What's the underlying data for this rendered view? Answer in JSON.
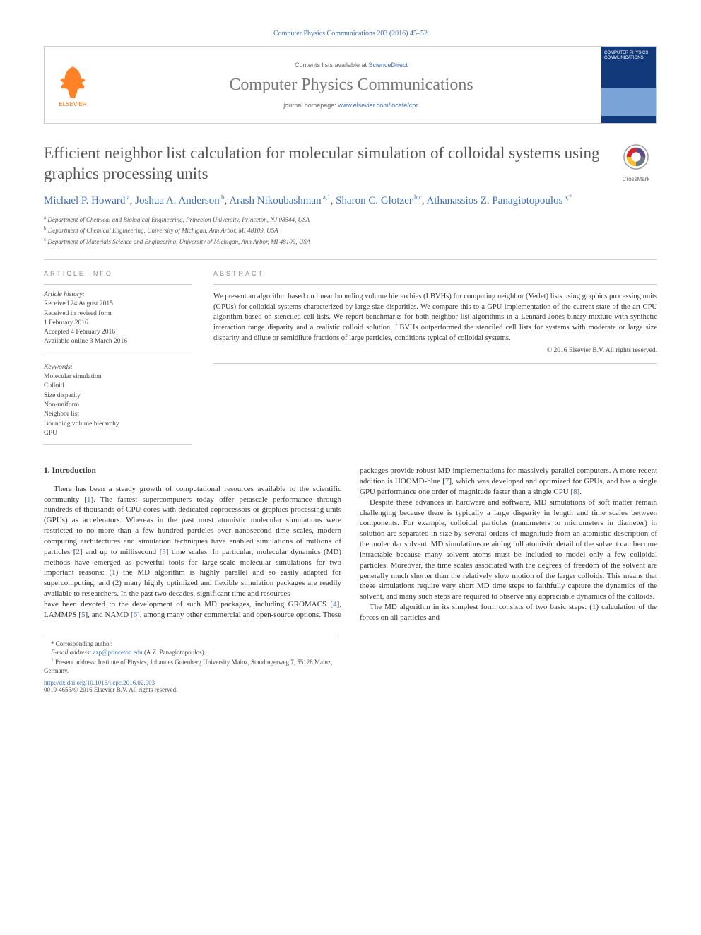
{
  "citation": "Computer Physics Communications 203 (2016) 45–52",
  "header": {
    "contents_text": "Contents lists available at ",
    "contents_link": "ScienceDirect",
    "journal_name": "Computer Physics Communications",
    "homepage_text": "journal homepage: ",
    "homepage_link": "www.elsevier.com/locate/cpc",
    "publisher": "ELSEVIER",
    "cover_title": "COMPUTER PHYSICS COMMUNICATIONS"
  },
  "article": {
    "title": "Efficient neighbor list calculation for molecular simulation of colloidal systems using graphics processing units",
    "crossmark": "CrossMark",
    "authors_html": "Michael P. Howard",
    "authors": [
      {
        "name": "Michael P. Howard",
        "sup": "a"
      },
      {
        "name": "Joshua A. Anderson",
        "sup": "b"
      },
      {
        "name": "Arash Nikoubashman",
        "sup": "a,1"
      },
      {
        "name": "Sharon C. Glotzer",
        "sup": "b,c"
      },
      {
        "name": "Athanassios Z. Panagiotopoulos",
        "sup": "a,*"
      }
    ],
    "affiliations": [
      {
        "sup": "a",
        "text": "Department of Chemical and Biological Engineering, Princeton University, Princeton, NJ 08544, USA"
      },
      {
        "sup": "b",
        "text": "Department of Chemical Engineering, University of Michigan, Ann Arbor, MI 48109, USA"
      },
      {
        "sup": "c",
        "text": "Department of Materials Science and Engineering, University of Michigan, Ann Arbor, MI 48109, USA"
      }
    ]
  },
  "info": {
    "label": "article info",
    "history_label": "Article history:",
    "history": [
      "Received 24 August 2015",
      "Received in revised form",
      "1 February 2016",
      "Accepted 4 February 2016",
      "Available online 3 March 2016"
    ],
    "keywords_label": "Keywords:",
    "keywords": [
      "Molecular simulation",
      "Colloid",
      "Size disparity",
      "Non-uniform",
      "Neighbor list",
      "Bounding volume hierarchy",
      "GPU"
    ]
  },
  "abstract": {
    "label": "abstract",
    "text": "We present an algorithm based on linear bounding volume hierarchies (LBVHs) for computing neighbor (Verlet) lists using graphics processing units (GPUs) for colloidal systems characterized by large size disparities. We compare this to a GPU implementation of the current state-of-the-art CPU algorithm based on stenciled cell lists. We report benchmarks for both neighbor list algorithms in a Lennard-Jones binary mixture with synthetic interaction range disparity and a realistic colloid solution. LBVHs outperformed the stenciled cell lists for systems with moderate or large size disparity and dilute or semidilute fractions of large particles, conditions typical of colloidal systems.",
    "copyright": "© 2016 Elsevier B.V. All rights reserved."
  },
  "body": {
    "section_title": "1. Introduction",
    "p1": "There has been a steady growth of computational resources available to the scientific community [1]. The fastest supercomputers today offer petascale performance through hundreds of thousands of CPU cores with dedicated coprocessors or graphics processing units (GPUs) as accelerators. Whereas in the past most atomistic molecular simulations were restricted to no more than a few hundred particles over nanosecond time scales, modern computing architectures and simulation techniques have enabled simulations of millions of particles [2] and up to millisecond [3] time scales. In particular, molecular dynamics (MD) methods have emerged as powerful tools for large-scale molecular simulations for two important reasons: (1) the MD algorithm is highly parallel and so easily adapted for supercomputing, and (2) many highly optimized and flexible simulation packages are readily available to researchers. In the past two decades, significant time and resources",
    "p2": "have been devoted to the development of such MD packages, including GROMACS [4], LAMMPS [5], and NAMD [6], among many other commercial and open-source options. These packages provide robust MD implementations for massively parallel computers. A more recent addition is HOOMD-blue [7], which was developed and optimized for GPUs, and has a single GPU performance one order of magnitude faster than a single CPU [8].",
    "p3": "Despite these advances in hardware and software, MD simulations of soft matter remain challenging because there is typically a large disparity in length and time scales between components. For example, colloidal particles (nanometers to micrometers in diameter) in solution are separated in size by several orders of magnitude from an atomistic description of the molecular solvent. MD simulations retaining full atomistic detail of the solvent can become intractable because many solvent atoms must be included to model only a few colloidal particles. Moreover, the time scales associated with the degrees of freedom of the solvent are generally much shorter than the relatively slow motion of the larger colloids. This means that these simulations require very short MD time steps to faithfully capture the dynamics of the solvent, and many such steps are required to observe any appreciable dynamics of the colloids.",
    "p4": "The MD algorithm in its simplest form consists of two basic steps: (1) calculation of the forces on all particles and"
  },
  "footnotes": {
    "corr_label": "* Corresponding author.",
    "email_label": "E-mail address: ",
    "email": "azp@princeton.edu",
    "email_person": " (A.Z. Panagiotopoulos).",
    "present_label": "1",
    "present_text": " Present address: Institute of Physics, Johannes Gutenberg University Mainz, Staudingerweg 7, 55128 Mainz, Germany.",
    "doi": "http://dx.doi.org/10.1016/j.cpc.2016.02.003",
    "issn": "0010-4655/© 2016 Elsevier B.V. All rights reserved."
  },
  "colors": {
    "link": "#3e6db5",
    "elsevier_orange": "#ff6c00",
    "cover_blue": "#123a7a",
    "heading_gray": "#555555"
  }
}
